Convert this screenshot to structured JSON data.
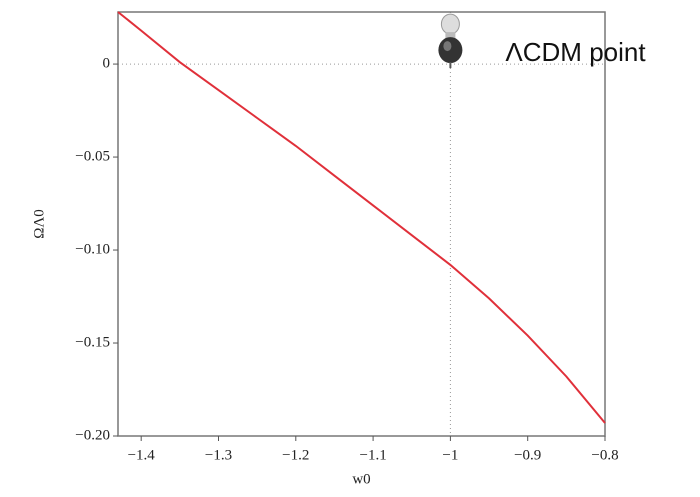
{
  "chart_data": {
    "type": "line",
    "x_label": "w0",
    "y_label": "ΩΛ0",
    "x": [
      -1.43,
      -1.4,
      -1.35,
      -1.3,
      -1.25,
      -1.2,
      -1.15,
      -1.1,
      -1.05,
      -1.0,
      -0.95,
      -0.9,
      -0.85,
      -0.8
    ],
    "series": [
      {
        "name": "ΩΛ0",
        "color": "#e0303a",
        "values": [
          0.028,
          0.018,
          0.001,
          -0.014,
          -0.029,
          -0.044,
          -0.06,
          -0.076,
          -0.092,
          -0.108,
          -0.126,
          -0.146,
          -0.168,
          -0.193
        ]
      }
    ],
    "xlim": [
      -1.43,
      -0.8
    ],
    "ylim": [
      -0.2,
      0.028
    ],
    "xticks": [
      {
        "value": -1.4,
        "label": "−1.4"
      },
      {
        "value": -1.3,
        "label": "−1.3"
      },
      {
        "value": -1.2,
        "label": "−1.2"
      },
      {
        "value": -1.1,
        "label": "−1.1"
      },
      {
        "value": -1,
        "label": "−1"
      },
      {
        "value": -0.9,
        "label": "−0.9"
      },
      {
        "value": -0.8,
        "label": "−0.8"
      }
    ],
    "yticks": [
      0,
      {
        "value": -0.05,
        "label": "−0.05"
      },
      {
        "value": -0.1,
        "label": "−0.10"
      },
      {
        "value": -0.15,
        "label": "−0.15"
      },
      {
        "value": -0.2,
        "label": "−0.20"
      }
    ],
    "annotation": {
      "text": "ΛCDM point",
      "x": -1,
      "y": 0
    }
  }
}
